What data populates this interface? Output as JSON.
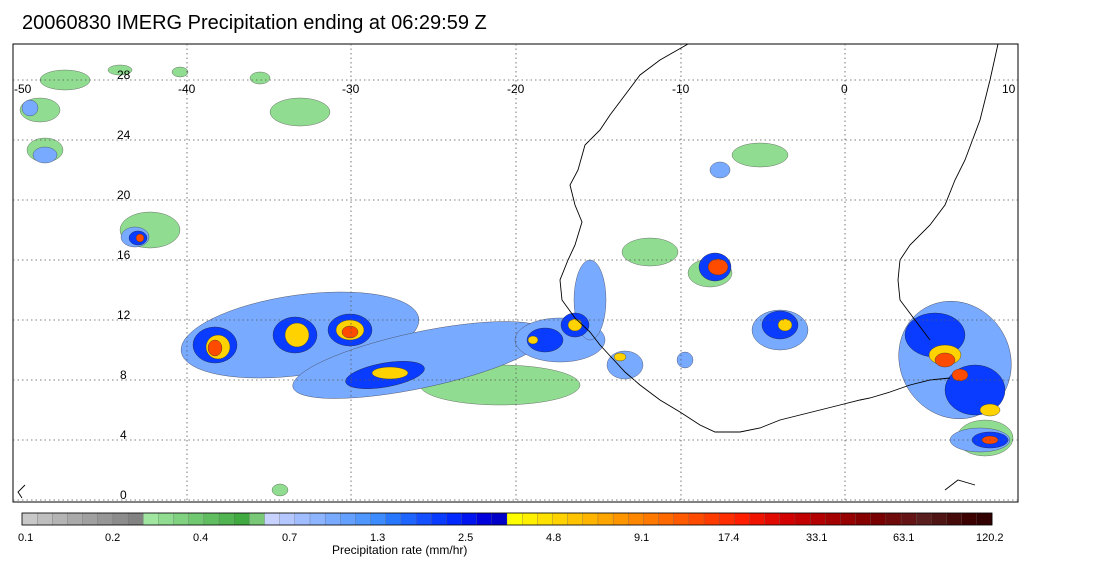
{
  "title": "20060830 IMERG Precipitation ending at 06:29:59 Z",
  "map": {
    "lon_labels": [
      "-50",
      "-40",
      "-30",
      "-20",
      "-10",
      "0",
      "10"
    ],
    "lat_labels": [
      "28",
      "24",
      "20",
      "16",
      "12",
      "8",
      "4",
      "0"
    ]
  },
  "colorbar": {
    "title": "Precipitation rate (mm/hr)",
    "tick_labels": [
      "0.1",
      "0.2",
      "0.4",
      "0.7",
      "1.3",
      "2.5",
      "4.8",
      "9.1",
      "17.4",
      "33.1",
      "63.1",
      "120.2"
    ],
    "colors": [
      "#c8c8c8",
      "#bebebe",
      "#b4b4b4",
      "#aaaaaa",
      "#a0a0a0",
      "#969696",
      "#8c8c8c",
      "#828282",
      "#a0e6a0",
      "#90dc90",
      "#80d280",
      "#70c870",
      "#60be60",
      "#50b450",
      "#40aa40",
      "#78c878",
      "#c8d2ff",
      "#b4c8ff",
      "#a0beff",
      "#8cb4ff",
      "#78aaff",
      "#64a0ff",
      "#5096ff",
      "#3c8cff",
      "#2878ff",
      "#1e64ff",
      "#1450ff",
      "#0a3cff",
      "#0028ff",
      "#0014f0",
      "#0000dc",
      "#0000c8",
      "#ffff00",
      "#fff000",
      "#ffe100",
      "#ffd200",
      "#ffc300",
      "#ffb400",
      "#ffa500",
      "#ff9600",
      "#ff8700",
      "#ff7800",
      "#ff6900",
      "#ff5a00",
      "#ff4b00",
      "#ff3c00",
      "#ff2d00",
      "#ff1e00",
      "#f01400",
      "#e10a00",
      "#d20000",
      "#c30000",
      "#b40000",
      "#a50000",
      "#960000",
      "#870000",
      "#780000",
      "#6e0a0a",
      "#641414",
      "#5a1e1e",
      "#501414",
      "#460a0a",
      "#3c0000",
      "#320000"
    ]
  }
}
